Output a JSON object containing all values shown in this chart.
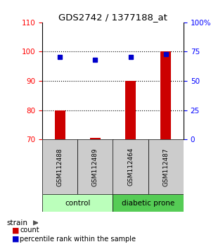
{
  "title": "GDS2742 / 1377188_at",
  "samples": [
    "GSM112488",
    "GSM112489",
    "GSM112464",
    "GSM112487"
  ],
  "counts": [
    80.0,
    70.6,
    90.0,
    100.0
  ],
  "percentiles": [
    70.5,
    68.0,
    70.5,
    73.0
  ],
  "ylim_left": [
    70,
    110
  ],
  "ylim_right": [
    0,
    100
  ],
  "yticks_left": [
    70,
    80,
    90,
    100,
    110
  ],
  "yticks_right": [
    0,
    25,
    50,
    75,
    100
  ],
  "ytick_labels_right": [
    "0",
    "25",
    "50",
    "75",
    "100%"
  ],
  "bar_color": "#cc0000",
  "dot_color": "#0000cc",
  "groups": [
    {
      "label": "control",
      "indices": [
        0,
        1
      ],
      "color": "#bbffbb"
    },
    {
      "label": "diabetic prone",
      "indices": [
        2,
        3
      ],
      "color": "#55cc55"
    }
  ],
  "group_bar_color": "#cccccc",
  "legend_count_label": "count",
  "legend_pct_label": "percentile rank within the sample",
  "strain_label": "strain"
}
